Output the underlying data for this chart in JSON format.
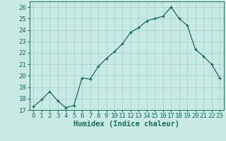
{
  "x": [
    0,
    1,
    2,
    3,
    4,
    5,
    6,
    7,
    8,
    9,
    10,
    11,
    12,
    13,
    14,
    15,
    16,
    17,
    18,
    19,
    20,
    21,
    22,
    23
  ],
  "y": [
    17.3,
    17.9,
    18.6,
    17.8,
    17.2,
    17.4,
    19.8,
    19.7,
    20.8,
    21.5,
    22.1,
    22.8,
    23.8,
    24.2,
    24.8,
    25.0,
    25.2,
    26.0,
    25.0,
    24.4,
    22.3,
    21.7,
    21.0,
    19.8
  ],
  "line_color": "#1a6b5a",
  "marker": "+",
  "bg_color": "#c8eae4",
  "grid_color": "#a8d4ce",
  "xlabel": "Humidex (Indice chaleur)",
  "ylim": [
    17,
    26.5
  ],
  "xlim": [
    -0.5,
    23.5
  ],
  "yticks": [
    17,
    18,
    19,
    20,
    21,
    22,
    23,
    24,
    25,
    26
  ],
  "xticks": [
    0,
    1,
    2,
    3,
    4,
    5,
    6,
    7,
    8,
    9,
    10,
    11,
    12,
    13,
    14,
    15,
    16,
    17,
    18,
    19,
    20,
    21,
    22,
    23
  ],
  "xlabel_fontsize": 7.5,
  "tick_fontsize": 6.5,
  "linewidth": 0.9,
  "markersize": 3.5
}
